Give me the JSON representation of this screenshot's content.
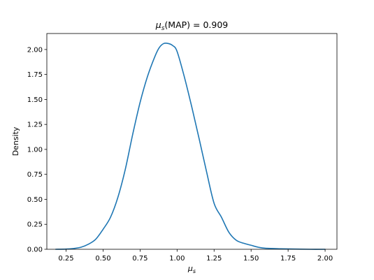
{
  "chart_data": {
    "type": "line",
    "title": {
      "symbol": "μ",
      "subscript": "s",
      "rest": "(MAP) = 0.909"
    },
    "xlabel": {
      "symbol": "μ",
      "subscript": "s"
    },
    "ylabel": "Density",
    "xlim": [
      0.12,
      2.08
    ],
    "ylim": [
      0.0,
      2.16
    ],
    "grid": false,
    "x_ticks": [
      0.25,
      0.5,
      0.75,
      1.0,
      1.25,
      1.5,
      1.75,
      2.0
    ],
    "x_tick_labels": [
      "0.25",
      "0.50",
      "0.75",
      "1.00",
      "1.25",
      "1.50",
      "1.75",
      "2.00"
    ],
    "y_ticks": [
      0.0,
      0.25,
      0.5,
      0.75,
      1.0,
      1.25,
      1.5,
      1.75,
      2.0
    ],
    "y_tick_labels": [
      "0.00",
      "0.25",
      "0.50",
      "0.75",
      "1.00",
      "1.25",
      "1.50",
      "1.75",
      "2.00"
    ],
    "series": [
      {
        "color": "#1f77b4",
        "x": [
          0.18,
          0.25,
          0.3,
          0.35,
          0.4,
          0.45,
          0.5,
          0.55,
          0.6,
          0.65,
          0.7,
          0.75,
          0.8,
          0.85,
          0.88,
          0.91,
          0.94,
          0.97,
          1.0,
          1.05,
          1.1,
          1.15,
          1.2,
          1.25,
          1.3,
          1.35,
          1.4,
          1.45,
          1.5,
          1.55,
          1.6,
          1.7,
          1.8,
          1.9,
          2.0
        ],
        "y": [
          0.0,
          0.002,
          0.008,
          0.02,
          0.05,
          0.1,
          0.2,
          0.32,
          0.52,
          0.8,
          1.15,
          1.47,
          1.73,
          1.93,
          2.02,
          2.06,
          2.06,
          2.04,
          1.98,
          1.72,
          1.42,
          1.1,
          0.77,
          0.46,
          0.32,
          0.17,
          0.09,
          0.06,
          0.04,
          0.02,
          0.01,
          0.005,
          0.002,
          0.0,
          0.0
        ]
      }
    ]
  }
}
